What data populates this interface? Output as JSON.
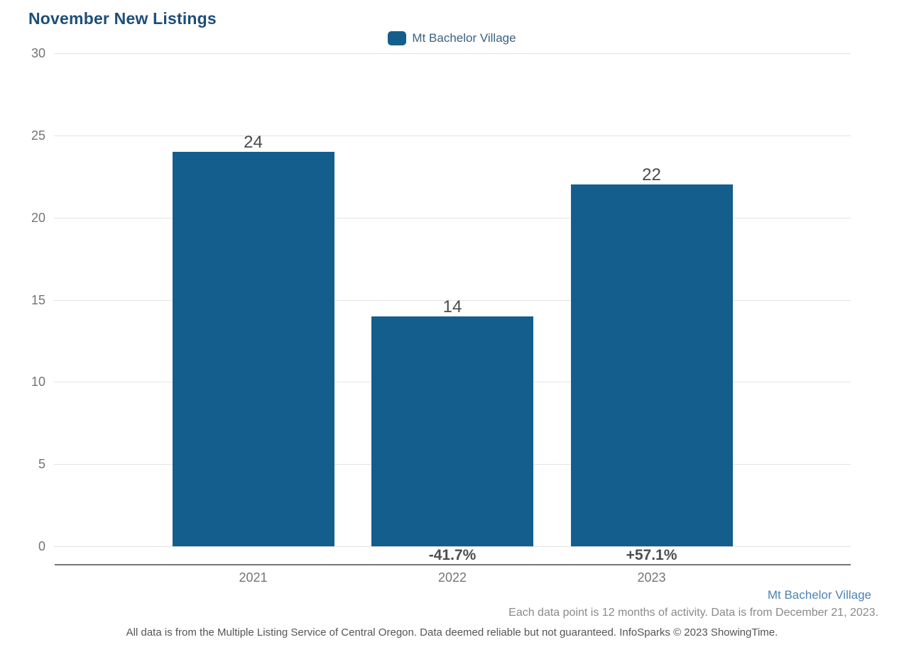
{
  "title": "November New Listings",
  "legend": {
    "label": "Mt Bachelor Village",
    "swatch_color": "#135E8D"
  },
  "chart_data": {
    "type": "bar",
    "title": "November New Listings",
    "categories": [
      "2021",
      "2022",
      "2023"
    ],
    "series": [
      {
        "name": "Mt Bachelor Village",
        "values": [
          24,
          14,
          22
        ]
      }
    ],
    "value_labels": [
      "24",
      "14",
      "22"
    ],
    "pct_change_labels": [
      "",
      "-41.7%",
      "+57.1%"
    ],
    "yticks": [
      0,
      5,
      10,
      15,
      20,
      25,
      30
    ],
    "ylim": [
      0,
      30
    ],
    "xlabel": "",
    "ylabel": "",
    "grid": "horizontal",
    "legend_position": "top-center",
    "bar_color": "#135E8D"
  },
  "colors": {
    "bar": "#135E8D",
    "title": "#1E4E79",
    "footer_link": "#4E82B6",
    "axis_text": "#757575",
    "gridline": "#E3E3E3"
  },
  "footer": {
    "series_link": "Mt Bachelor Village",
    "note_line1": "Each data point is 12 months of activity. Data is from December 21, 2023.",
    "note_line2": "All data is from the Multiple Listing Service of Central Oregon. Data deemed reliable but not guaranteed. InfoSparks © 2023 ShowingTime."
  }
}
